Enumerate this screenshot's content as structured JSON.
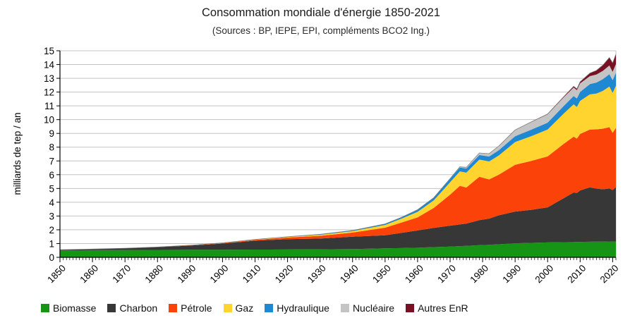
{
  "title": "Consommation mondiale d'énergie 1850-2021",
  "subtitle": "(Sources : BP, IEPE, EPI, compléments BCO2 Ing.)",
  "chart_data": {
    "type": "area",
    "stacked": true,
    "title": "Consommation mondiale d'énergie 1850-2021",
    "subtitle": "(Sources : BP, IEPE, EPI, compléments BCO2 Ing.)",
    "xlabel": "",
    "ylabel": "milliards de tep / an",
    "xlim": [
      1850,
      2021
    ],
    "ylim": [
      0,
      15
    ],
    "ytick_step": 1,
    "grid": "horizontal",
    "gridline_color": "#c3c3c3",
    "axis_color": "#000000",
    "legend_position": "bottom",
    "xticks": [
      1850,
      1860,
      1870,
      1880,
      1890,
      1900,
      1910,
      1920,
      1930,
      1940,
      1950,
      1960,
      1970,
      1980,
      1990,
      2000,
      2010,
      2020
    ],
    "x": [
      1850,
      1860,
      1870,
      1880,
      1890,
      1900,
      1910,
      1920,
      1930,
      1940,
      1950,
      1955,
      1960,
      1965,
      1970,
      1973,
      1975,
      1979,
      1982,
      1985,
      1990,
      1995,
      2000,
      2005,
      2008,
      2009,
      2010,
      2013,
      2015,
      2017,
      2019,
      2020,
      2021
    ],
    "series": [
      {
        "name": "Biomasse",
        "color": "#159415",
        "values": [
          0.5,
          0.52,
          0.53,
          0.54,
          0.55,
          0.55,
          0.56,
          0.57,
          0.58,
          0.6,
          0.65,
          0.67,
          0.7,
          0.74,
          0.78,
          0.81,
          0.83,
          0.88,
          0.91,
          0.95,
          1.02,
          1.05,
          1.08,
          1.1,
          1.11,
          1.12,
          1.12,
          1.13,
          1.14,
          1.14,
          1.15,
          1.14,
          1.15
        ]
      },
      {
        "name": "Charbon",
        "color": "#373737",
        "values": [
          0.05,
          0.08,
          0.13,
          0.2,
          0.3,
          0.45,
          0.65,
          0.75,
          0.78,
          0.9,
          0.95,
          1.1,
          1.25,
          1.4,
          1.52,
          1.58,
          1.62,
          1.82,
          1.9,
          2.1,
          2.3,
          2.4,
          2.55,
          3.2,
          3.6,
          3.55,
          3.74,
          3.95,
          3.85,
          3.8,
          3.85,
          3.75,
          3.95
        ]
      },
      {
        "name": "Pétrole",
        "color": "#fb4208",
        "values": [
          0,
          0,
          0,
          0.01,
          0.02,
          0.03,
          0.06,
          0.12,
          0.2,
          0.3,
          0.55,
          0.75,
          0.95,
          1.45,
          2.25,
          2.8,
          2.62,
          3.15,
          2.85,
          2.95,
          3.4,
          3.55,
          3.7,
          3.95,
          4.05,
          3.95,
          4.1,
          4.2,
          4.3,
          4.4,
          4.45,
          4.15,
          4.3
        ]
      },
      {
        "name": "Gaz",
        "color": "#ffd42e",
        "values": [
          0,
          0,
          0,
          0,
          0.01,
          0.01,
          0.02,
          0.04,
          0.07,
          0.1,
          0.2,
          0.28,
          0.4,
          0.55,
          0.9,
          1.05,
          1.08,
          1.25,
          1.3,
          1.4,
          1.65,
          1.8,
          1.95,
          2.2,
          2.35,
          2.3,
          2.4,
          2.55,
          2.6,
          2.75,
          2.95,
          2.9,
          3.05
        ]
      },
      {
        "name": "Hydraulique",
        "color": "#1e88d2",
        "values": [
          0,
          0,
          0,
          0,
          0,
          0.01,
          0.01,
          0.02,
          0.04,
          0.05,
          0.08,
          0.1,
          0.15,
          0.19,
          0.25,
          0.28,
          0.3,
          0.33,
          0.36,
          0.38,
          0.42,
          0.47,
          0.5,
          0.55,
          0.6,
          0.62,
          0.65,
          0.75,
          0.8,
          0.85,
          0.9,
          0.92,
          0.95
        ]
      },
      {
        "name": "Nucléaire",
        "color": "#c4c4c4",
        "values": [
          0,
          0,
          0,
          0,
          0,
          0,
          0,
          0,
          0,
          0,
          0,
          0,
          0.01,
          0.01,
          0.02,
          0.05,
          0.09,
          0.15,
          0.2,
          0.3,
          0.45,
          0.55,
          0.6,
          0.63,
          0.62,
          0.6,
          0.62,
          0.58,
          0.58,
          0.6,
          0.63,
          0.61,
          0.63
        ]
      },
      {
        "name": "Autres EnR",
        "color": "#7a1023",
        "values": [
          0,
          0,
          0,
          0,
          0,
          0,
          0,
          0,
          0,
          0,
          0,
          0,
          0,
          0,
          0,
          0,
          0,
          0,
          0.01,
          0.01,
          0.01,
          0.02,
          0.03,
          0.05,
          0.09,
          0.1,
          0.12,
          0.22,
          0.3,
          0.42,
          0.58,
          0.65,
          0.72
        ]
      }
    ]
  }
}
